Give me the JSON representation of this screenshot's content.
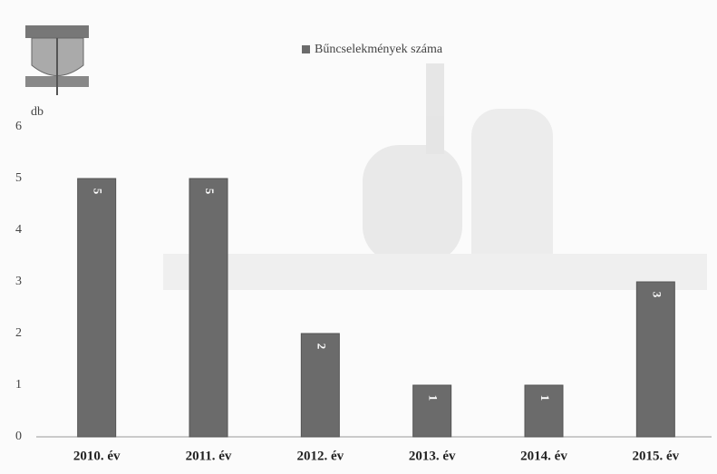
{
  "chart_data": {
    "type": "bar",
    "y_label": "db",
    "categories": [
      "2010. év",
      "2011. év",
      "2012. év",
      "2013. év",
      "2014. év",
      "2015. év"
    ],
    "series": [
      {
        "name": "Bűncselekmények száma",
        "color": "#6b6b6b",
        "values": [
          5,
          5,
          2,
          1,
          1,
          3
        ]
      }
    ],
    "ylim": [
      0,
      6
    ],
    "yticks": [
      0,
      1,
      2,
      3,
      4,
      5,
      6
    ],
    "grid": false,
    "legend": "top"
  }
}
